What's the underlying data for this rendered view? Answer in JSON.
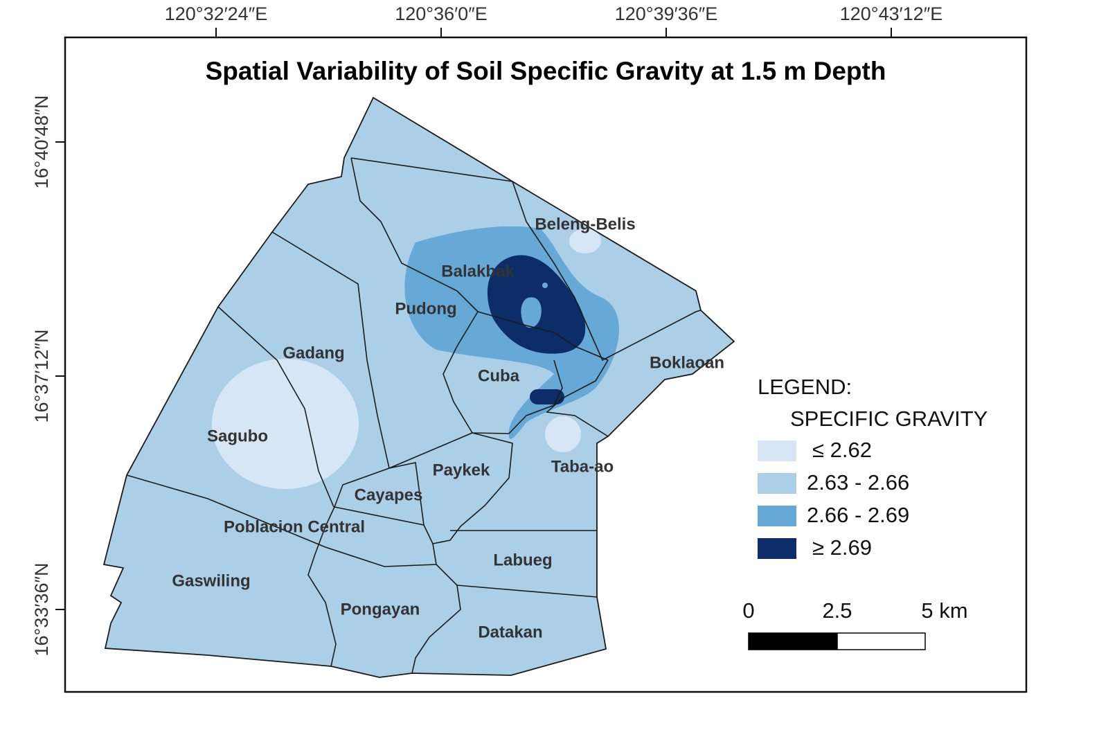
{
  "title": "Spatial Variability of Soil Specific Gravity at 1.5 m Depth",
  "x_labels": [
    "120°32′24″E",
    "120°36′0″E",
    "120°39′36″E",
    "120°43′12″E"
  ],
  "y_labels": [
    "16°40′48″N",
    "16°37′12″N",
    "16°33′36″N"
  ],
  "places": [
    "Beleng-Belis",
    "Balakbak",
    "Pudong",
    "Gadang",
    "Boklaoan",
    "Cuba",
    "Sagubo",
    "Paykek",
    "Taba-ao",
    "Cayapes",
    "Poblacion Central",
    "Labueg",
    "Gaswiling",
    "Pongayan",
    "Datakan"
  ],
  "legend": {
    "heading": "LEGEND:",
    "subheading": "SPECIFIC GRAVITY",
    "classes": [
      {
        "label": "≤ 2.62",
        "color": "#d6e6f5"
      },
      {
        "label": "2.63 - 2.66",
        "color": "#abcfe6"
      },
      {
        "label": "2.66 - 2.69",
        "color": "#66a9d6"
      },
      {
        "label": "≥ 2.69",
        "color": "#0c2d68"
      }
    ]
  },
  "scale_bar": {
    "labels": [
      "0",
      "2.5",
      "5 km"
    ]
  }
}
